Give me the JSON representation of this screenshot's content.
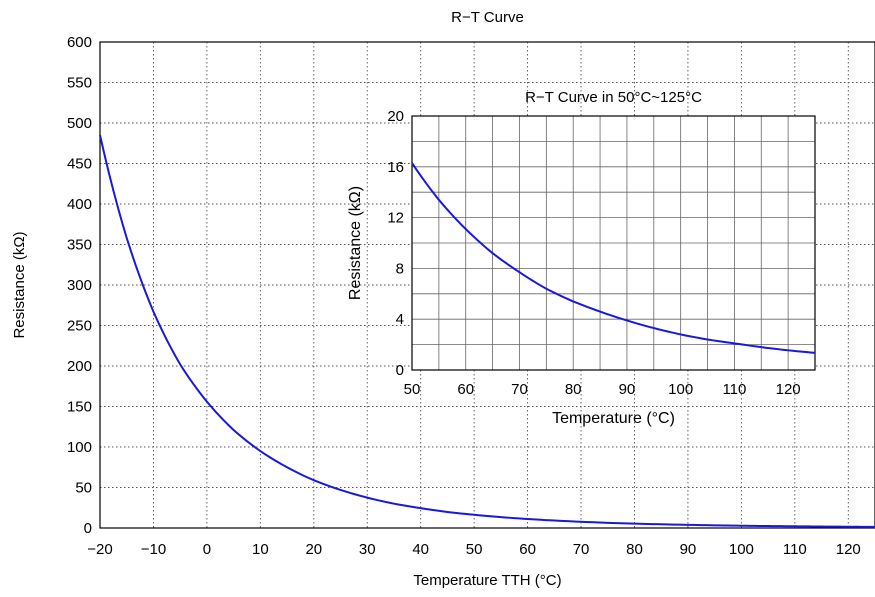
{
  "chart_data": [
    {
      "type": "line",
      "title": "R−T Curve",
      "xlabel": "Temperature TTH (°C)",
      "ylabel": "Resistance (kΩ)",
      "xlim": [
        -20,
        125
      ],
      "ylim": [
        0,
        600
      ],
      "x_ticks": [
        -20,
        -10,
        0,
        10,
        20,
        30,
        40,
        50,
        60,
        70,
        80,
        90,
        100,
        110,
        120
      ],
      "x_tick_labels": [
        "−20",
        "−10",
        "0",
        "10",
        "20",
        "30",
        "40",
        "50",
        "60",
        "70",
        "80",
        "90",
        "100",
        "110",
        "120"
      ],
      "y_ticks": [
        0,
        50,
        100,
        150,
        200,
        250,
        300,
        350,
        400,
        450,
        500,
        550,
        600
      ],
      "y_tick_labels": [
        "0",
        "50",
        "100",
        "150",
        "200",
        "250",
        "300",
        "350",
        "400",
        "450",
        "500",
        "550",
        "600"
      ],
      "grid": true,
      "line_color": "#1a1ad6",
      "series": [
        {
          "x": [
            -20,
            -15,
            -10,
            -5,
            0,
            5,
            10,
            15,
            20,
            25,
            30,
            35,
            40,
            45,
            50,
            55,
            60,
            65,
            70,
            75,
            80,
            85,
            90,
            95,
            100,
            105,
            110,
            115,
            120,
            125
          ],
          "values": [
            485,
            358,
            267,
            202,
            156,
            121,
            95,
            75,
            59,
            47,
            37.5,
            30,
            24.5,
            19.8,
            16.3,
            13.4,
            11.1,
            9.2,
            7.7,
            6.4,
            5.4,
            4.6,
            3.9,
            3.3,
            2.8,
            2.4,
            2.1,
            1.8,
            1.55,
            1.35
          ]
        }
      ]
    },
    {
      "type": "line",
      "title": "R−T Curve in 50°C~125°C",
      "xlabel": "Temperature (°C)",
      "ylabel": "Resistance (kΩ)",
      "xlim": [
        50,
        125
      ],
      "ylim": [
        0,
        20
      ],
      "x_ticks": [
        50,
        60,
        70,
        80,
        90,
        100,
        110,
        120
      ],
      "x_tick_labels": [
        "50",
        "60",
        "70",
        "80",
        "90",
        "100",
        "110",
        "120"
      ],
      "y_ticks": [
        0,
        4,
        8,
        12,
        16,
        20
      ],
      "y_tick_labels": [
        "0",
        "4",
        "8",
        "12",
        "16",
        "20"
      ],
      "grid": true,
      "line_color": "#1a1ad6",
      "series": [
        {
          "x": [
            50,
            55,
            60,
            65,
            70,
            75,
            80,
            85,
            90,
            95,
            100,
            105,
            110,
            115,
            120,
            125
          ],
          "values": [
            16.3,
            13.4,
            11.1,
            9.2,
            7.7,
            6.4,
            5.4,
            4.6,
            3.9,
            3.3,
            2.8,
            2.4,
            2.1,
            1.8,
            1.55,
            1.35
          ]
        }
      ]
    }
  ]
}
